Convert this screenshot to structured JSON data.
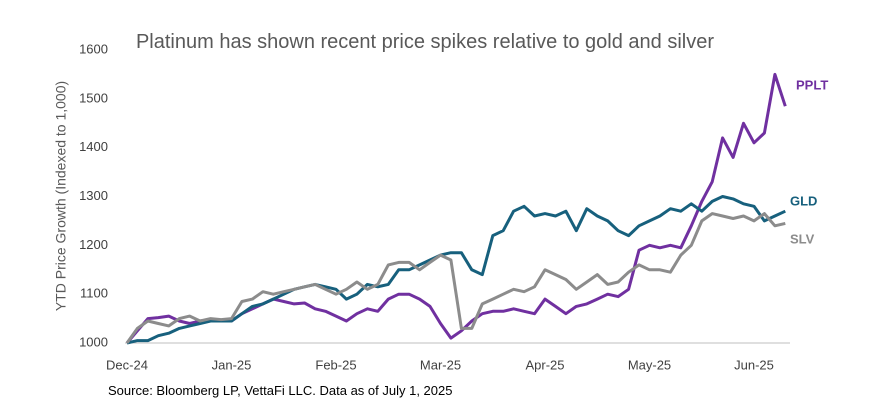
{
  "chart_data": {
    "type": "line",
    "title": "Platinum has shown recent price spikes relative to gold and silver",
    "y_label": "YTD Price Growth (Indexed to 1,000)",
    "source": "Source: Bloomberg LP, VettaFi LLC. Data as of July 1, 2025",
    "categories": [
      "Dec-24",
      null,
      null,
      null,
      null,
      null,
      null,
      null,
      null,
      null,
      "Jan-25",
      null,
      null,
      null,
      null,
      null,
      null,
      null,
      null,
      null,
      "Feb-25",
      null,
      null,
      null,
      null,
      null,
      null,
      null,
      null,
      null,
      "Mar-25",
      null,
      null,
      null,
      null,
      null,
      null,
      null,
      null,
      null,
      "Apr-25",
      null,
      null,
      null,
      null,
      null,
      null,
      null,
      null,
      null,
      "May-25",
      null,
      null,
      null,
      null,
      null,
      null,
      null,
      null,
      null,
      "Jun-25",
      null,
      null,
      null
    ],
    "ylim": [
      1000,
      1600
    ],
    "yticks": [
      1000,
      1100,
      1200,
      1300,
      1400,
      1500,
      1600
    ],
    "grid": false,
    "series": [
      {
        "name": "PPLT",
        "color": "#7030a0",
        "values": [
          1000,
          1025,
          1050,
          1052,
          1055,
          1045,
          1040,
          1045,
          1048,
          1045,
          1045,
          1060,
          1070,
          1080,
          1090,
          1085,
          1080,
          1082,
          1070,
          1065,
          1055,
          1045,
          1060,
          1070,
          1065,
          1090,
          1100,
          1100,
          1090,
          1075,
          1040,
          1010,
          1025,
          1045,
          1060,
          1065,
          1065,
          1070,
          1065,
          1060,
          1090,
          1075,
          1060,
          1075,
          1080,
          1090,
          1100,
          1095,
          1110,
          1190,
          1200,
          1195,
          1200,
          1195,
          1240,
          1290,
          1330,
          1420,
          1380,
          1450,
          1410,
          1430,
          1550,
          1485
        ]
      },
      {
        "name": "GLD",
        "color": "#17607d",
        "values": [
          1000,
          1005,
          1005,
          1015,
          1020,
          1030,
          1035,
          1040,
          1045,
          1045,
          1045,
          1060,
          1075,
          1080,
          1090,
          1100,
          1110,
          1115,
          1120,
          1115,
          1110,
          1090,
          1100,
          1120,
          1115,
          1120,
          1150,
          1150,
          1160,
          1170,
          1180,
          1185,
          1185,
          1150,
          1140,
          1220,
          1230,
          1270,
          1280,
          1260,
          1265,
          1260,
          1270,
          1230,
          1275,
          1260,
          1250,
          1230,
          1220,
          1240,
          1250,
          1260,
          1275,
          1270,
          1285,
          1270,
          1290,
          1300,
          1295,
          1285,
          1280,
          1250,
          1260,
          1270
        ]
      },
      {
        "name": "SLV",
        "color": "#8c8c8c",
        "values": [
          1000,
          1030,
          1045,
          1040,
          1035,
          1050,
          1055,
          1045,
          1050,
          1048,
          1050,
          1085,
          1090,
          1105,
          1100,
          1105,
          1110,
          1115,
          1120,
          1110,
          1100,
          1110,
          1125,
          1110,
          1120,
          1160,
          1165,
          1165,
          1150,
          1165,
          1180,
          1170,
          1030,
          1030,
          1080,
          1090,
          1100,
          1110,
          1105,
          1115,
          1150,
          1140,
          1130,
          1110,
          1125,
          1140,
          1120,
          1125,
          1145,
          1160,
          1150,
          1150,
          1145,
          1180,
          1200,
          1250,
          1265,
          1260,
          1255,
          1260,
          1250,
          1265,
          1240,
          1245
        ]
      }
    ]
  }
}
